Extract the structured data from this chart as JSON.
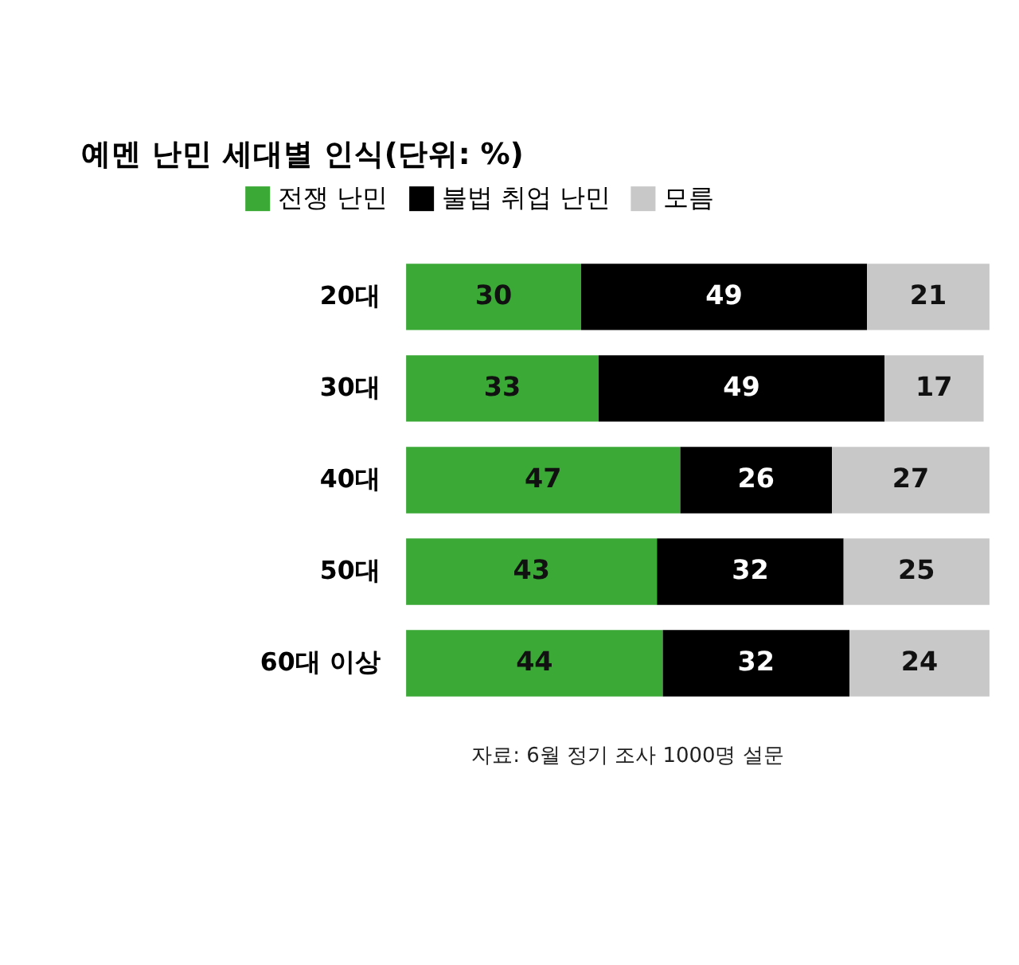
{
  "chart_data": {
    "type": "bar",
    "orientation": "horizontal",
    "stacked": true,
    "title": "예멘 난민 세대별 인식(단위: %)",
    "categories": [
      "20대",
      "30대",
      "40대",
      "50대",
      "60대 이상"
    ],
    "series": [
      {
        "name": "전쟁 난민",
        "color": "#3aa935",
        "values": [
          30,
          33,
          47,
          43,
          44
        ]
      },
      {
        "name": "불법 취업 난민",
        "color": "#000000",
        "values": [
          49,
          49,
          26,
          32,
          32
        ]
      },
      {
        "name": "모름",
        "color": "#c8c8c8",
        "values": [
          21,
          17,
          27,
          25,
          24
        ]
      }
    ],
    "xlim": [
      0,
      100
    ],
    "data_labels": true,
    "legend": "top left",
    "grid": false,
    "tick_labels": "y",
    "annotations": [
      "자료: 6월 정기 조사 1000명 설문"
    ]
  }
}
